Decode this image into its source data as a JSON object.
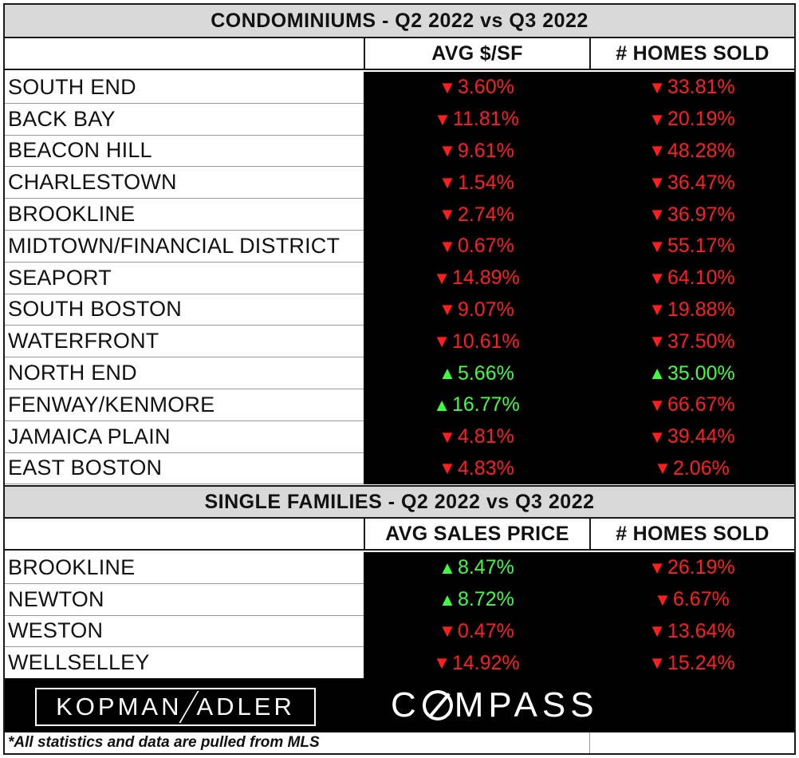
{
  "condos": {
    "title": "CONDOMINIUMS - Q2 2022 vs Q3 2022",
    "col1": "AVG $/SF",
    "col2": "# HOMES SOLD",
    "rows": [
      {
        "name": "SOUTH END",
        "v1": "3.60%",
        "d1": "down",
        "v2": "33.81%",
        "d2": "down"
      },
      {
        "name": "BACK BAY",
        "v1": "11.81%",
        "d1": "down",
        "v2": "20.19%",
        "d2": "down"
      },
      {
        "name": "BEACON HILL",
        "v1": "9.61%",
        "d1": "down",
        "v2": "48.28%",
        "d2": "down"
      },
      {
        "name": "CHARLESTOWN",
        "v1": "1.54%",
        "d1": "down",
        "v2": "36.47%",
        "d2": "down"
      },
      {
        "name": "BROOKLINE",
        "v1": "2.74%",
        "d1": "down",
        "v2": "36.97%",
        "d2": "down"
      },
      {
        "name": "MIDTOWN/FINANCIAL DISTRICT",
        "v1": "0.67%",
        "d1": "down",
        "v2": "55.17%",
        "d2": "down"
      },
      {
        "name": "SEAPORT",
        "v1": "14.89%",
        "d1": "down",
        "v2": "64.10%",
        "d2": "down"
      },
      {
        "name": "SOUTH BOSTON",
        "v1": "9.07%",
        "d1": "down",
        "v2": "19.88%",
        "d2": "down"
      },
      {
        "name": "WATERFRONT",
        "v1": "10.61%",
        "d1": "down",
        "v2": "37.50%",
        "d2": "down"
      },
      {
        "name": "NORTH END",
        "v1": "5.66%",
        "d1": "up",
        "v2": "35.00%",
        "d2": "up"
      },
      {
        "name": "FENWAY/KENMORE",
        "v1": "16.77%",
        "d1": "up",
        "v2": "66.67%",
        "d2": "down"
      },
      {
        "name": "JAMAICA PLAIN",
        "v1": "4.81%",
        "d1": "down",
        "v2": "39.44%",
        "d2": "down"
      },
      {
        "name": "EAST BOSTON",
        "v1": "4.83%",
        "d1": "down",
        "v2": "2.06%",
        "d2": "down"
      }
    ]
  },
  "singles": {
    "title": "SINGLE FAMILIES - Q2 2022 vs Q3 2022",
    "col1": "AVG SALES PRICE",
    "col2": "# HOMES SOLD",
    "rows": [
      {
        "name": "BROOKLINE",
        "v1": "8.47%",
        "d1": "up",
        "v2": "26.19%",
        "d2": "down"
      },
      {
        "name": "NEWTON",
        "v1": "8.72%",
        "d1": "up",
        "v2": "6.67%",
        "d2": "down"
      },
      {
        "name": "WESTON",
        "v1": "0.47%",
        "d1": "down",
        "v2": "13.64%",
        "d2": "down"
      },
      {
        "name": "WELLSELLEY",
        "v1": "14.92%",
        "d1": "down",
        "v2": "15.24%",
        "d2": "down"
      }
    ]
  },
  "logos": {
    "kopman_left": "KOPMAN",
    "kopman_right": "ADLER",
    "compass_c": "C",
    "compass_rest": "MPASS"
  },
  "footnote": "*All statistics and data are pulled from MLS",
  "arrows": {
    "up": "▲",
    "down": "▼"
  },
  "colors": {
    "down": "#ff1e1e",
    "up": "#3dff3d",
    "header_bg": "#d9d9d9",
    "value_bg": "#000000"
  }
}
